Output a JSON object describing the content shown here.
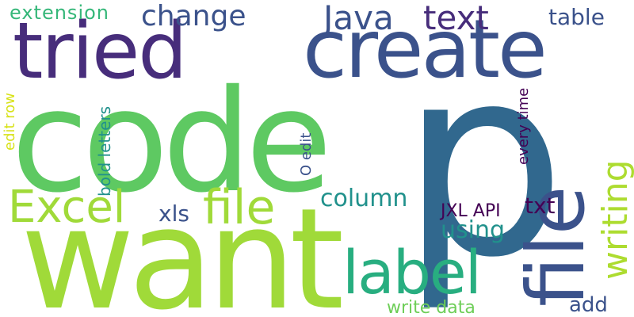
{
  "word_cloud": {
    "words": [
      {
        "id": "code",
        "text": "code",
        "color": "#5ec962"
      },
      {
        "id": "p",
        "text": "p",
        "color": "#31688e"
      },
      {
        "id": "want",
        "text": "want",
        "color": "#a0da39"
      },
      {
        "id": "create",
        "text": "create",
        "color": "#3b528b"
      },
      {
        "id": "tried",
        "text": "tried",
        "color": "#472d7b"
      },
      {
        "id": "file-vertical",
        "text": "file",
        "color": "#3b528b"
      },
      {
        "id": "file-horizontal",
        "text": "file",
        "color": "#a0da39"
      },
      {
        "id": "excel",
        "text": "Excel",
        "color": "#a0da39"
      },
      {
        "id": "label",
        "text": "label",
        "color": "#28ae80"
      },
      {
        "id": "writing",
        "text": "writing",
        "color": "#addc30"
      },
      {
        "id": "java",
        "text": "Java",
        "color": "#3b528b"
      },
      {
        "id": "text",
        "text": "text",
        "color": "#472d7b"
      },
      {
        "id": "change",
        "text": "change",
        "color": "#3b528b"
      },
      {
        "id": "extension",
        "text": "extension",
        "color": "#35b779"
      },
      {
        "id": "table",
        "text": "table",
        "color": "#3b528b"
      },
      {
        "id": "column",
        "text": "column",
        "color": "#21918c"
      },
      {
        "id": "using",
        "text": "using",
        "color": "#21918c"
      },
      {
        "id": "xls",
        "text": "xls",
        "color": "#3b528b"
      },
      {
        "id": "txt",
        "text": "txt",
        "color": "#440154"
      },
      {
        "id": "jxl-api",
        "text": "JXL API",
        "color": "#440154"
      },
      {
        "id": "add",
        "text": "add",
        "color": "#3b528b"
      },
      {
        "id": "write-data",
        "text": "write data",
        "color": "#6ece58"
      },
      {
        "id": "bold-letters",
        "text": "bold letters",
        "color": "#21918c"
      },
      {
        "id": "edit-row",
        "text": "edit row",
        "color": "#d8e219"
      },
      {
        "id": "o-edit",
        "text": "O edit",
        "color": "#3b528b"
      },
      {
        "id": "every-time",
        "text": "every time",
        "color": "#440154"
      }
    ]
  }
}
